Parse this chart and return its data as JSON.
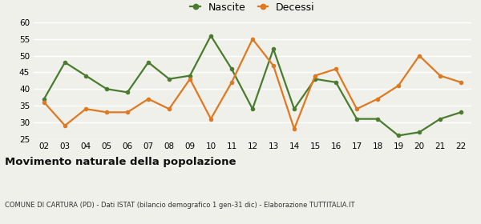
{
  "years": [
    "02",
    "03",
    "04",
    "05",
    "06",
    "07",
    "08",
    "09",
    "10",
    "11",
    "12",
    "13",
    "14",
    "15",
    "16",
    "17",
    "18",
    "19",
    "20",
    "21",
    "22"
  ],
  "nascite": [
    37,
    48,
    44,
    40,
    39,
    48,
    43,
    44,
    56,
    46,
    34,
    52,
    34,
    43,
    42,
    31,
    31,
    26,
    27,
    31,
    33
  ],
  "decessi": [
    36,
    29,
    34,
    33,
    33,
    37,
    34,
    43,
    31,
    42,
    55,
    47,
    28,
    44,
    46,
    34,
    37,
    41,
    50,
    44,
    42
  ],
  "nascite_color": "#4a7c2f",
  "decessi_color": "#e07820",
  "background_color": "#f0f0ea",
  "grid_color": "#ffffff",
  "ylim": [
    25,
    60
  ],
  "yticks": [
    25,
    30,
    35,
    40,
    45,
    50,
    55,
    60
  ],
  "title": "Movimento naturale della popolazione",
  "subtitle": "COMUNE DI CARTURA (PD) - Dati ISTAT (bilancio demografico 1 gen-31 dic) - Elaborazione TUTTITALIA.IT",
  "legend_nascite": "Nascite",
  "legend_decessi": "Decessi",
  "marker_size": 4,
  "line_width": 1.6
}
